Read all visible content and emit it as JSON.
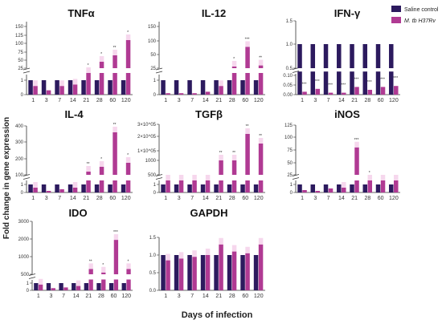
{
  "figure": {
    "ylabel": "Fold change in gene expression",
    "xlabel": "Days of infection",
    "legend": [
      {
        "name": "Saline control",
        "color": "#2c1a5e"
      },
      {
        "name": "M. tb H37Rv",
        "color": "#b03a93"
      }
    ]
  },
  "colors": {
    "saline": "#2c1a5e",
    "mtb": "#b03a93",
    "mtb_err": "#f2c6e6"
  },
  "chart_data": [
    {
      "type": "bar",
      "title": "TNFα",
      "categories": [
        "1",
        "3",
        "7",
        "14",
        "21",
        "28",
        "60",
        "120"
      ],
      "upper_ticks": [
        "150",
        "125",
        "100",
        "75",
        "50",
        "25"
      ],
      "lower_ticks": [
        "1",
        "0"
      ],
      "series": [
        {
          "name": "Saline control",
          "values": [
            1,
            1,
            1,
            1,
            1,
            1,
            1,
            1
          ]
        },
        {
          "name": "M. tb H37Rv",
          "values": [
            0.6,
            0.3,
            0.6,
            0.7,
            5,
            45,
            65,
            110
          ]
        }
      ],
      "sig": [
        "",
        "",
        "",
        "",
        "*",
        "*",
        "**",
        "*"
      ]
    },
    {
      "type": "bar",
      "title": "IL-12",
      "categories": [
        "1",
        "3",
        "7",
        "14",
        "21",
        "28",
        "60",
        "120"
      ],
      "upper_ticks": [
        "150",
        "100",
        "50",
        "25"
      ],
      "lower_ticks": [
        "1",
        "0"
      ],
      "series": [
        {
          "name": "Saline control",
          "values": [
            1,
            1,
            1,
            1,
            1,
            1,
            1,
            1
          ]
        },
        {
          "name": "M. tb H37Rv",
          "values": [
            0.1,
            0.1,
            0.1,
            0.2,
            0.6,
            28,
            78,
            30
          ]
        }
      ],
      "sig": [
        "",
        "",
        "",
        "",
        "",
        "*",
        "***",
        "**"
      ]
    },
    {
      "type": "bar",
      "title": "IFN-γ",
      "categories": [
        "1",
        "3",
        "7",
        "14",
        "21",
        "28",
        "60",
        "120"
      ],
      "upper_ticks": [
        "1.5",
        "1.0",
        "0.5"
      ],
      "lower_ticks": [
        "0.10",
        "0.05",
        "0.00"
      ],
      "series": [
        {
          "name": "Saline control",
          "values": [
            1,
            1,
            1,
            1,
            1,
            1,
            1,
            1
          ]
        },
        {
          "name": "M. tb H37Rv",
          "values": [
            0.015,
            0.03,
            0.01,
            0.01,
            0.04,
            0.025,
            0.04,
            0.045
          ]
        }
      ],
      "sig": [
        "***",
        "***",
        "***",
        "***",
        "***",
        "***",
        "***",
        "***"
      ]
    },
    {
      "type": "bar",
      "title": "IL-4",
      "categories": [
        "1",
        "3",
        "7",
        "14",
        "21",
        "28",
        "60",
        "120"
      ],
      "upper_ticks": [
        "400",
        "300",
        "200",
        "100"
      ],
      "lower_ticks": [
        "1",
        "0"
      ],
      "series": [
        {
          "name": "Saline control",
          "values": [
            1,
            1,
            1,
            1,
            1,
            1,
            1,
            1
          ]
        },
        {
          "name": "M. tb H37Rv",
          "values": [
            0.6,
            0.2,
            0.4,
            0.6,
            120,
            150,
            360,
            175
          ]
        }
      ],
      "sig": [
        "",
        "",
        "",
        "",
        "**",
        "*",
        "**",
        "*"
      ]
    },
    {
      "type": "bar",
      "title": "TGFβ",
      "categories": [
        "1",
        "3",
        "7",
        "14",
        "21",
        "28",
        "60",
        "120"
      ],
      "upper_ticks": [
        "3×10^05",
        "2×10^05",
        "1×10^05",
        "1000",
        "500"
      ],
      "lower_ticks": [
        "1",
        "0"
      ],
      "series": [
        {
          "name": "Saline control",
          "values": [
            1,
            1,
            1,
            1,
            1,
            1,
            1,
            1
          ]
        },
        {
          "name": "M. tb H37Rv",
          "values": [
            500,
            200,
            200,
            300,
            1000,
            1000,
            220000.0,
            150000.0
          ]
        }
      ],
      "sig": [
        "",
        "",
        "",
        "",
        "**",
        "**",
        "**",
        "**"
      ]
    },
    {
      "type": "bar",
      "title": "iNOS",
      "categories": [
        "1",
        "3",
        "7",
        "14",
        "21",
        "28",
        "60",
        "120"
      ],
      "upper_ticks": [
        "125",
        "100",
        "75",
        "50",
        "25"
      ],
      "lower_ticks": [
        "1",
        "0"
      ],
      "series": [
        {
          "name": "Saline control",
          "values": [
            1,
            1,
            1,
            1,
            1,
            1,
            1,
            1
          ]
        },
        {
          "name": "M. tb H37Rv",
          "values": [
            0.3,
            0.2,
            0.5,
            0.6,
            80,
            12,
            25,
            22
          ]
        }
      ],
      "sig": [
        "",
        "",
        "",
        "",
        "***",
        "*",
        "",
        ""
      ]
    },
    {
      "type": "bar",
      "title": "IDO",
      "categories": [
        "1",
        "3",
        "7",
        "14",
        "21",
        "28",
        "60",
        "120"
      ],
      "upper_ticks": [
        "3000",
        "2000",
        "1000",
        "500"
      ],
      "lower_ticks": [
        "1",
        "0"
      ],
      "series": [
        {
          "name": "Saline control",
          "values": [
            1,
            1,
            1,
            1,
            1,
            1,
            1,
            1
          ]
        },
        {
          "name": "M. tb H37Rv",
          "values": [
            0.8,
            0.3,
            0.4,
            0.6,
            650,
            550,
            1950,
            650
          ]
        }
      ],
      "sig": [
        "",
        "",
        "",
        "",
        "**",
        "*",
        "***",
        "*"
      ]
    },
    {
      "type": "bar",
      "title": "GAPDH",
      "categories": [
        "1",
        "3",
        "7",
        "14",
        "21",
        "28",
        "60",
        "120"
      ],
      "ylim": [
        0,
        1.5
      ],
      "ticks": [
        "1.5",
        "1.0",
        "0.5",
        "0.0"
      ],
      "series": [
        {
          "name": "Saline control",
          "values": [
            1,
            1,
            1,
            1,
            1,
            1,
            1,
            1
          ]
        },
        {
          "name": "M. tb H37Rv",
          "values": [
            0.85,
            0.9,
            0.95,
            1.0,
            1.3,
            1.1,
            1.05,
            1.3
          ]
        }
      ],
      "sig": [
        "",
        "",
        "",
        "",
        "",
        "",
        "",
        ""
      ]
    }
  ]
}
